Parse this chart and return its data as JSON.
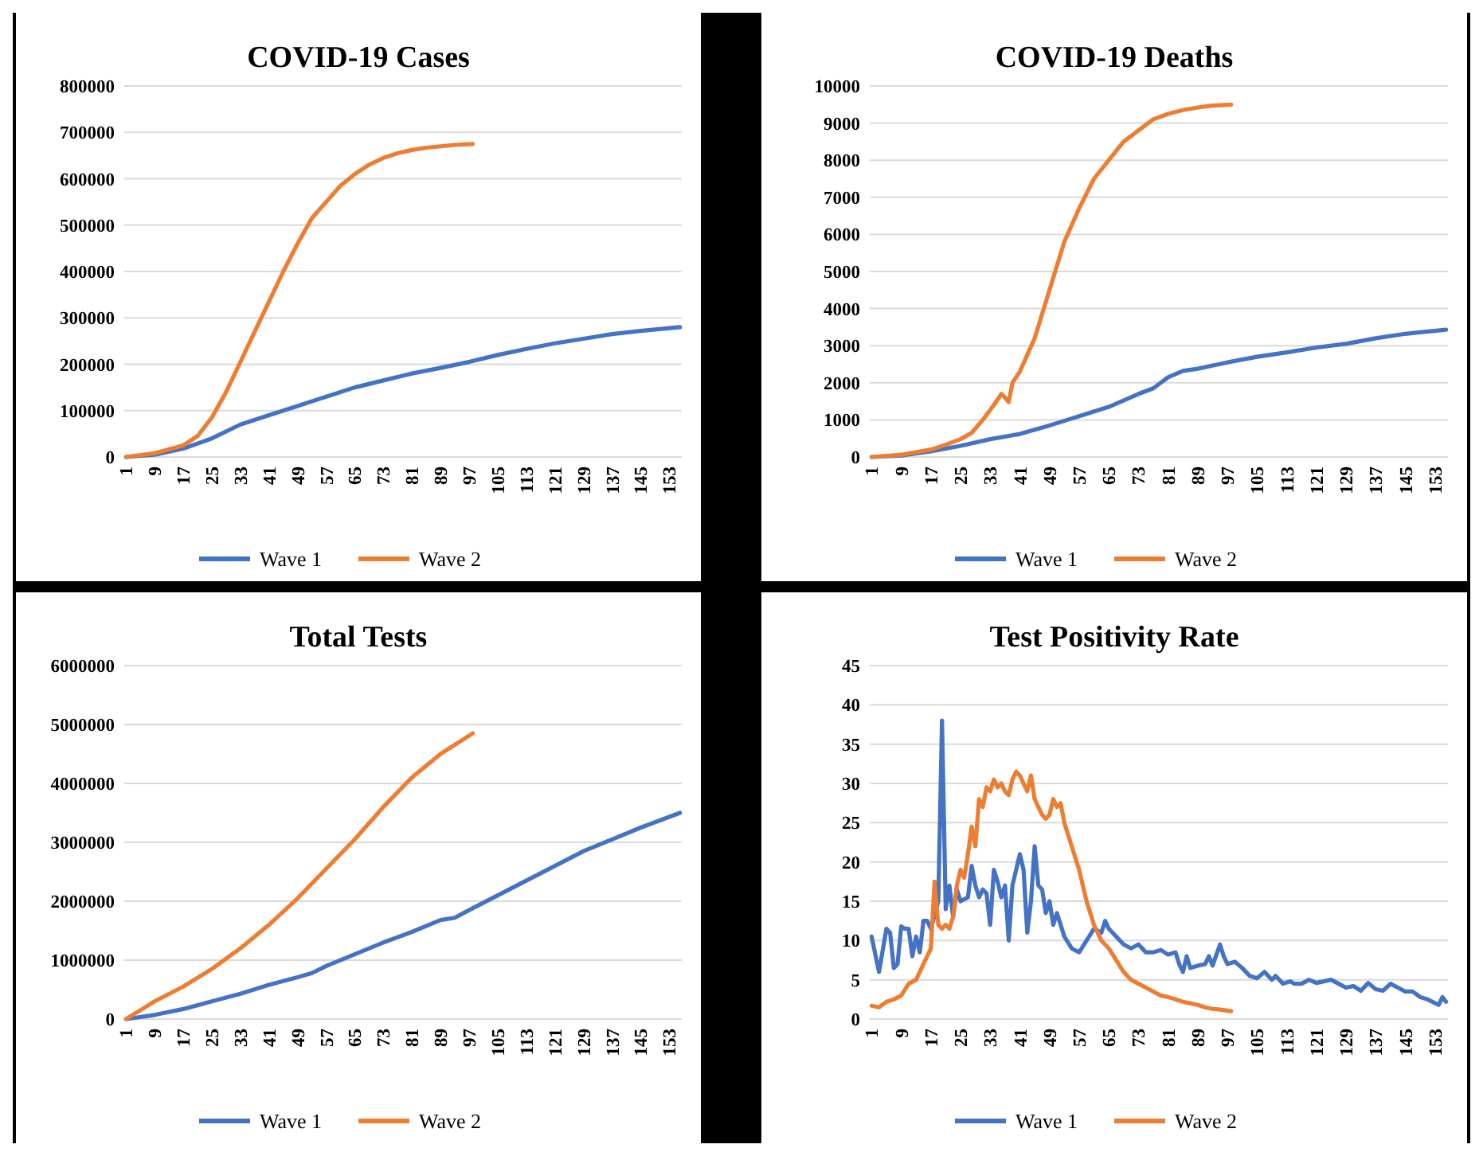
{
  "chart_data": [
    {
      "type": "line",
      "title": "COVID-19 Cases",
      "xlim": [
        0.5,
        156.5
      ],
      "xticks": [
        1,
        9,
        17,
        25,
        33,
        41,
        49,
        57,
        65,
        73,
        81,
        89,
        97,
        105,
        113,
        121,
        129,
        137,
        145,
        153
      ],
      "ylim": [
        0,
        800000
      ],
      "yticks": [
        0,
        100000,
        200000,
        300000,
        400000,
        500000,
        600000,
        700000,
        800000
      ],
      "grid": "y",
      "legend": "bottom",
      "series": [
        {
          "name": "Wave 1",
          "color": "#4472c4",
          "x": [
            1,
            9,
            17,
            25,
            33,
            41,
            49,
            57,
            65,
            73,
            81,
            89,
            97,
            105,
            113,
            121,
            129,
            137,
            145,
            156
          ],
          "values": [
            0,
            5000,
            18000,
            40000,
            70000,
            90000,
            110000,
            130000,
            150000,
            165000,
            180000,
            192000,
            205000,
            220000,
            233000,
            245000,
            255000,
            265000,
            272000,
            280000
          ]
        },
        {
          "name": "Wave 2",
          "color": "#ed7d31",
          "x": [
            1,
            9,
            17,
            21,
            25,
            29,
            33,
            37,
            41,
            45,
            49,
            53,
            57,
            61,
            65,
            69,
            73,
            77,
            81,
            85,
            89,
            93,
            98
          ],
          "values": [
            0,
            8000,
            25000,
            45000,
            85000,
            140000,
            205000,
            270000,
            335000,
            400000,
            460000,
            515000,
            550000,
            585000,
            610000,
            630000,
            645000,
            655000,
            662000,
            667000,
            670000,
            673000,
            675000
          ]
        }
      ]
    },
    {
      "type": "line",
      "title": "COVID-19 Deaths",
      "xlim": [
        0.5,
        156.5
      ],
      "xticks": [
        1,
        9,
        17,
        25,
        33,
        41,
        49,
        57,
        65,
        73,
        81,
        89,
        97,
        105,
        113,
        121,
        129,
        137,
        145,
        153
      ],
      "ylim": [
        0,
        10000
      ],
      "yticks": [
        0,
        1000,
        2000,
        3000,
        4000,
        5000,
        6000,
        7000,
        8000,
        9000,
        10000
      ],
      "grid": "y",
      "legend": "bottom",
      "series": [
        {
          "name": "Wave 1",
          "color": "#4472c4",
          "x": [
            1,
            9,
            17,
            25,
            33,
            41,
            49,
            57,
            65,
            73,
            77,
            81,
            85,
            89,
            97,
            105,
            113,
            121,
            129,
            137,
            145,
            156
          ],
          "values": [
            0,
            40,
            150,
            300,
            480,
            620,
            850,
            1100,
            1350,
            1700,
            1850,
            2150,
            2320,
            2380,
            2550,
            2700,
            2820,
            2950,
            3050,
            3200,
            3320,
            3430
          ]
        },
        {
          "name": "Wave 2",
          "color": "#ed7d31",
          "x": [
            1,
            9,
            17,
            21,
            25,
            28,
            31,
            34,
            36,
            37,
            38,
            39,
            41,
            45,
            49,
            53,
            57,
            61,
            65,
            69,
            73,
            77,
            81,
            85,
            89,
            93,
            98
          ],
          "values": [
            0,
            60,
            200,
            330,
            480,
            650,
            1000,
            1400,
            1700,
            1600,
            1480,
            2000,
            2300,
            3200,
            4500,
            5800,
            6700,
            7500,
            8000,
            8500,
            8800,
            9100,
            9250,
            9350,
            9420,
            9470,
            9500
          ]
        }
      ]
    },
    {
      "type": "line",
      "title": "Total Tests",
      "xlim": [
        0.5,
        156.5
      ],
      "xticks": [
        1,
        9,
        17,
        25,
        33,
        41,
        49,
        57,
        65,
        73,
        81,
        89,
        97,
        105,
        113,
        121,
        129,
        137,
        145,
        153
      ],
      "ylim": [
        0,
        6000000
      ],
      "yticks": [
        0,
        1000000,
        2000000,
        3000000,
        4000000,
        5000000,
        6000000
      ],
      "grid": "y",
      "legend": "bottom",
      "series": [
        {
          "name": "Wave 1",
          "color": "#4472c4",
          "x": [
            1,
            9,
            17,
            25,
            33,
            41,
            49,
            53,
            57,
            65,
            73,
            81,
            89,
            93,
            97,
            105,
            113,
            121,
            129,
            137,
            145,
            156
          ],
          "values": [
            0,
            70000,
            170000,
            300000,
            430000,
            580000,
            710000,
            780000,
            900000,
            1100000,
            1300000,
            1480000,
            1680000,
            1720000,
            1850000,
            2100000,
            2350000,
            2600000,
            2850000,
            3050000,
            3250000,
            3500000
          ]
        },
        {
          "name": "Wave 2",
          "color": "#ed7d31",
          "x": [
            1,
            5,
            9,
            17,
            25,
            33,
            41,
            49,
            57,
            65,
            73,
            81,
            89,
            98
          ],
          "values": [
            0,
            150000,
            300000,
            550000,
            850000,
            1200000,
            1600000,
            2050000,
            2550000,
            3050000,
            3600000,
            4100000,
            4500000,
            4850000
          ]
        }
      ]
    },
    {
      "type": "line",
      "title": "Test Positivity Rate",
      "xlim": [
        0.5,
        156.5
      ],
      "xticks": [
        1,
        9,
        17,
        25,
        33,
        41,
        49,
        57,
        65,
        73,
        81,
        89,
        97,
        105,
        113,
        121,
        129,
        137,
        145,
        153
      ],
      "ylim": [
        0,
        45
      ],
      "yticks": [
        0,
        5,
        10,
        15,
        20,
        25,
        30,
        35,
        40,
        45
      ],
      "grid": "y",
      "legend": "bottom",
      "series": [
        {
          "name": "Wave 1",
          "color": "#4472c4",
          "x": [
            1,
            3,
            5,
            6,
            7,
            8,
            9,
            10,
            11,
            12,
            13,
            14,
            15,
            16,
            17,
            19,
            20,
            21,
            22,
            23,
            24,
            25,
            27,
            28,
            29,
            30,
            31,
            32,
            33,
            34,
            35,
            36,
            37,
            38,
            39,
            41,
            42,
            43,
            44,
            45,
            46,
            47,
            48,
            49,
            50,
            51,
            53,
            55,
            57,
            59,
            61,
            63,
            64,
            65,
            67,
            69,
            71,
            73,
            75,
            77,
            79,
            81,
            83,
            84,
            85,
            86,
            87,
            89,
            91,
            92,
            93,
            95,
            96,
            97,
            99,
            101,
            103,
            105,
            107,
            109,
            110,
            112,
            114,
            115,
            117,
            119,
            121,
            123,
            125,
            127,
            129,
            131,
            133,
            135,
            137,
            139,
            141,
            143,
            145,
            147,
            149,
            151,
            154,
            155,
            156
          ],
          "values": [
            10.5,
            6,
            11.5,
            11,
            6.5,
            7,
            11.8,
            11.5,
            11.5,
            8,
            10.5,
            8.5,
            12.5,
            12.5,
            11.5,
            15,
            38,
            14,
            17,
            13,
            16.5,
            15,
            15.5,
            19.5,
            17,
            15.5,
            16.5,
            16,
            12,
            19,
            17.5,
            15.5,
            17,
            10,
            17,
            21,
            19,
            11,
            15,
            22,
            17,
            16.5,
            13.5,
            15,
            12,
            13.5,
            10.5,
            9,
            8.5,
            10,
            11.5,
            11,
            12.5,
            11.5,
            10.5,
            9.5,
            9,
            9.5,
            8.5,
            8.5,
            8.8,
            8.2,
            8.5,
            7,
            6,
            8,
            6.5,
            6.8,
            7,
            8,
            6.8,
            9.5,
            8,
            7,
            7.3,
            6.5,
            5.5,
            5.2,
            6,
            5,
            5.5,
            4.5,
            4.8,
            4.5,
            4.5,
            5,
            4.6,
            4.8,
            5,
            4.5,
            4,
            4.2,
            3.6,
            4.6,
            3.8,
            3.6,
            4.5,
            4,
            3.5,
            3.5,
            2.8,
            2.5,
            1.8,
            2.8,
            2.2
          ]
        },
        {
          "name": "Wave 2",
          "color": "#ed7d31",
          "x": [
            1,
            3,
            5,
            7,
            9,
            11,
            13,
            15,
            16,
            17,
            18,
            19,
            20,
            21,
            22,
            23,
            24,
            25,
            26,
            27,
            28,
            29,
            30,
            31,
            32,
            33,
            34,
            35,
            36,
            37,
            38,
            39,
            40,
            41,
            42,
            43,
            44,
            45,
            46,
            47,
            48,
            49,
            50,
            51,
            52,
            53,
            55,
            57,
            59,
            61,
            63,
            65,
            67,
            69,
            71,
            73,
            75,
            77,
            79,
            81,
            83,
            85,
            87,
            89,
            91,
            93,
            95,
            98
          ],
          "values": [
            1.7,
            1.5,
            2.2,
            2.5,
            3,
            4.5,
            5,
            7,
            8,
            9,
            17.5,
            12,
            11.5,
            12,
            11.5,
            13,
            17,
            19,
            18,
            21,
            24.5,
            22,
            28,
            27,
            29.5,
            29,
            30.5,
            29.5,
            30,
            29,
            28.5,
            30.5,
            31.5,
            31,
            30,
            29,
            31,
            28,
            27,
            26,
            25.5,
            26,
            28,
            27,
            27.5,
            25,
            22,
            19,
            15,
            12,
            10,
            9,
            7.5,
            6,
            5,
            4.5,
            4,
            3.5,
            3,
            2.8,
            2.5,
            2.2,
            2,
            1.8,
            1.5,
            1.3,
            1.2,
            1
          ]
        }
      ]
    }
  ]
}
